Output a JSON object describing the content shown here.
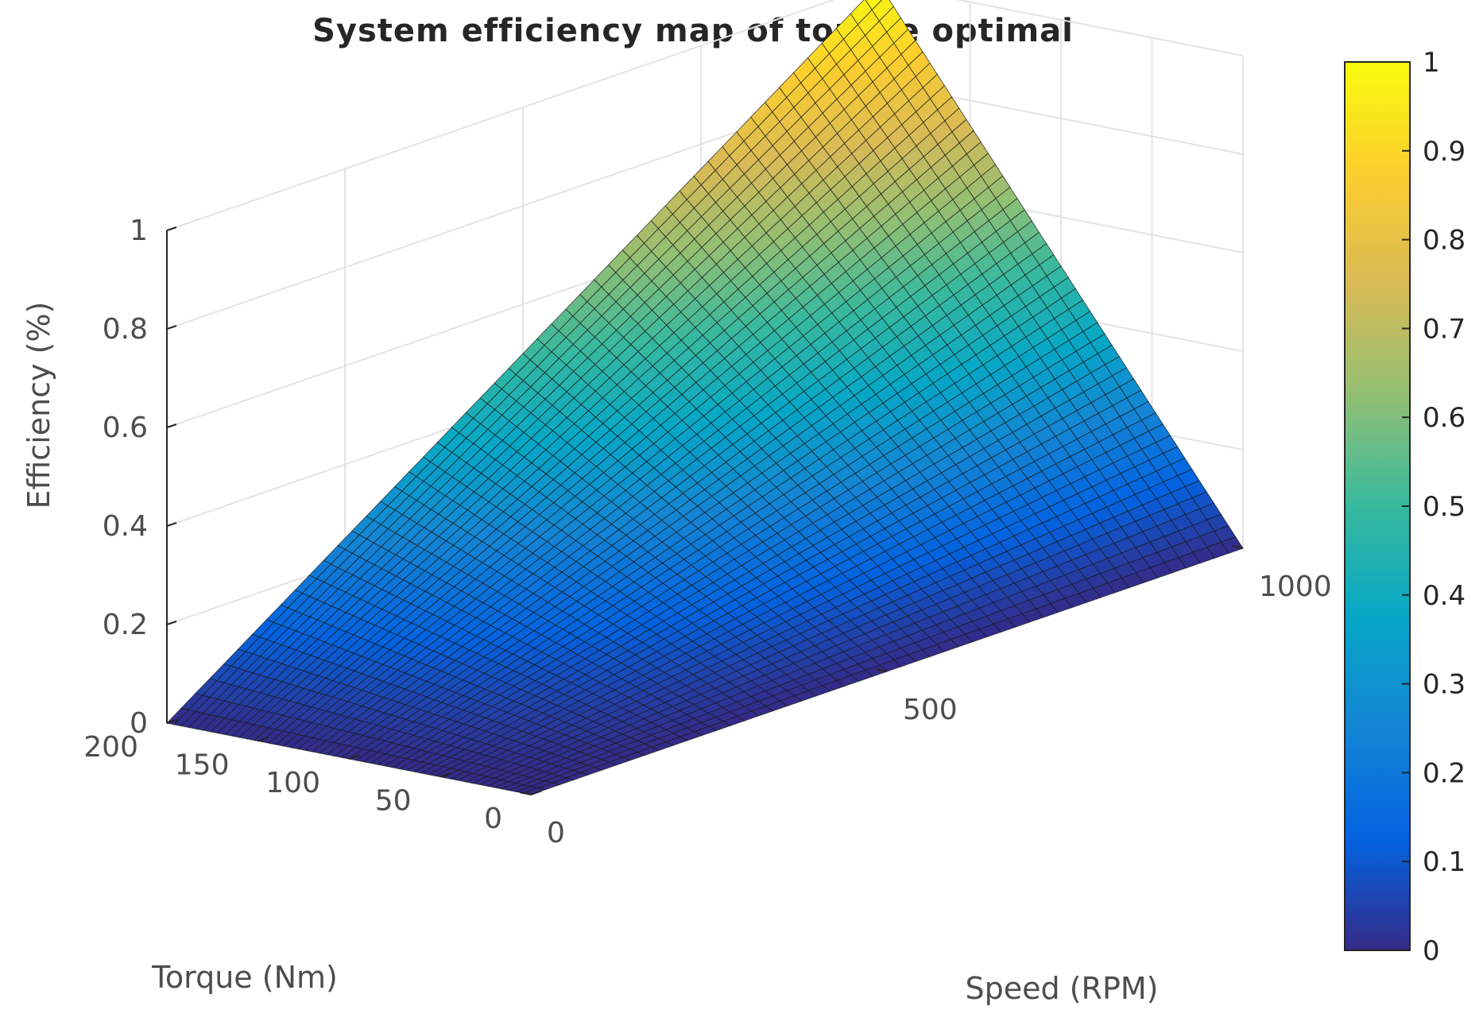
{
  "chart_data": {
    "type": "surface",
    "title": "System efficiency map of torque optimal",
    "xlabel": "Speed (RPM)",
    "ylabel": "Torque (Nm)",
    "zlabel": "Efficiency (%)",
    "x_range": [
      0,
      1000
    ],
    "y_range": [
      0,
      200
    ],
    "z_range": [
      0,
      1
    ],
    "x_ticks": [
      0,
      500,
      1000
    ],
    "y_ticks": [
      0,
      50,
      100,
      150,
      200
    ],
    "z_ticks": [
      0,
      0.2,
      0.4,
      0.6,
      0.8,
      1
    ],
    "x_tick_labels": [
      "0",
      "500",
      "1000"
    ],
    "y_tick_labels": [
      "0",
      "50",
      "100",
      "150",
      "200"
    ],
    "z_tick_labels": [
      "0",
      "0.2",
      "0.4",
      "0.6",
      "0.8",
      "1"
    ],
    "surface": {
      "function": "efficiency = (speed / 1000) * (torque / 200)",
      "corner_points": [
        {
          "speed": 0,
          "torque": 0,
          "efficiency": 0
        },
        {
          "speed": 1000,
          "torque": 0,
          "efficiency": 0
        },
        {
          "speed": 0,
          "torque": 200,
          "efficiency": 0
        },
        {
          "speed": 1000,
          "torque": 200,
          "efficiency": 1
        }
      ]
    },
    "grid": true,
    "colormap": "parula",
    "colorbar": {
      "range": [
        0,
        1
      ],
      "ticks": [
        0,
        0.1,
        0.2,
        0.3,
        0.4,
        0.5,
        0.6,
        0.7,
        0.8,
        0.9,
        1
      ],
      "tick_labels": [
        "0",
        "0.1",
        "0.2",
        "0.3",
        "0.4",
        "0.5",
        "0.6",
        "0.7",
        "0.8",
        "0.9",
        "1"
      ],
      "placement": "right"
    }
  },
  "colors": {
    "parula": [
      "#352a87",
      "#0363e1",
      "#1485d4",
      "#06a7c6",
      "#38b99e",
      "#92bf73",
      "#d9ba56",
      "#fcce2e",
      "#f9fb0e"
    ],
    "mesh_edge": "#1a1a1a",
    "axis": "#262626",
    "grid": "#e3e3e3"
  }
}
